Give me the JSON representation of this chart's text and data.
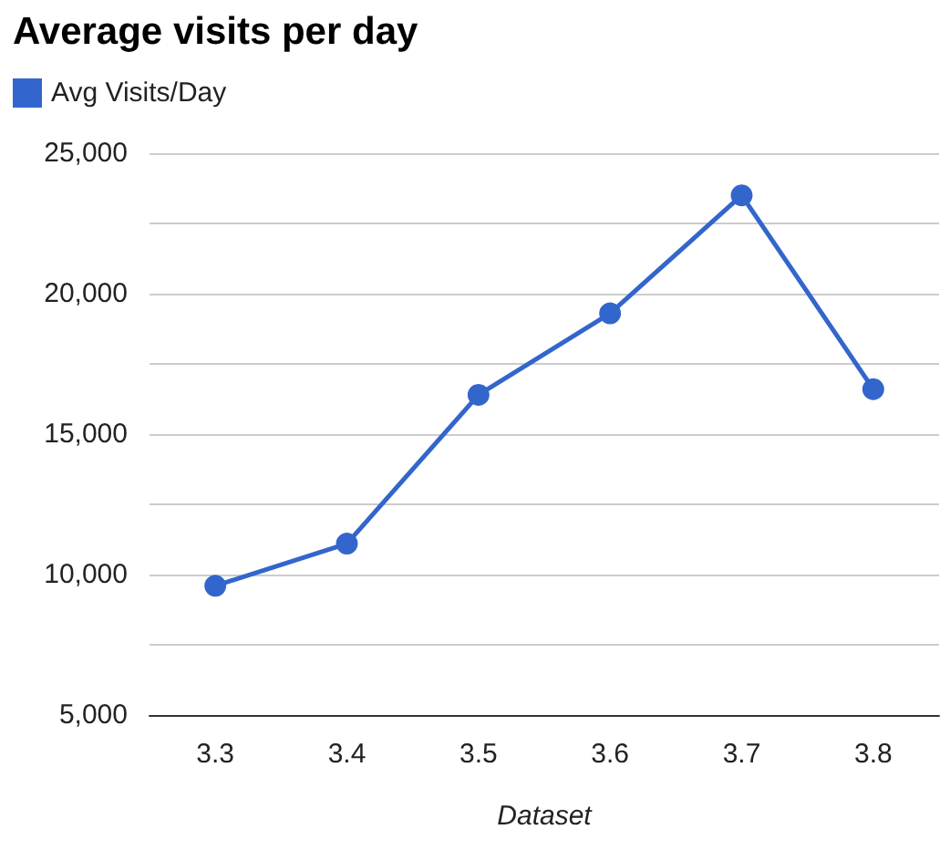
{
  "chart_data": {
    "type": "line",
    "title": "Average visits per day",
    "xlabel": "Dataset",
    "categories": [
      "3.3",
      "3.4",
      "3.5",
      "3.6",
      "3.7",
      "3.8"
    ],
    "series": [
      {
        "name": "Avg Visits/Day",
        "color": "#3366cc",
        "values": [
          9600,
          11100,
          16400,
          19300,
          23500,
          16600
        ]
      }
    ],
    "ylim": [
      5000,
      25000
    ],
    "yticks": [
      {
        "value": 5000,
        "label": "5,000"
      },
      {
        "value": 7500,
        "label": null
      },
      {
        "value": 10000,
        "label": "10,000"
      },
      {
        "value": 12500,
        "label": null
      },
      {
        "value": 15000,
        "label": "15,000"
      },
      {
        "value": 17500,
        "label": null
      },
      {
        "value": 20000,
        "label": "20,000"
      },
      {
        "value": 22500,
        "label": null
      },
      {
        "value": 25000,
        "label": "25,000"
      }
    ],
    "grid": true,
    "legend": "top left",
    "marker": "circle",
    "line_style": "solid"
  }
}
